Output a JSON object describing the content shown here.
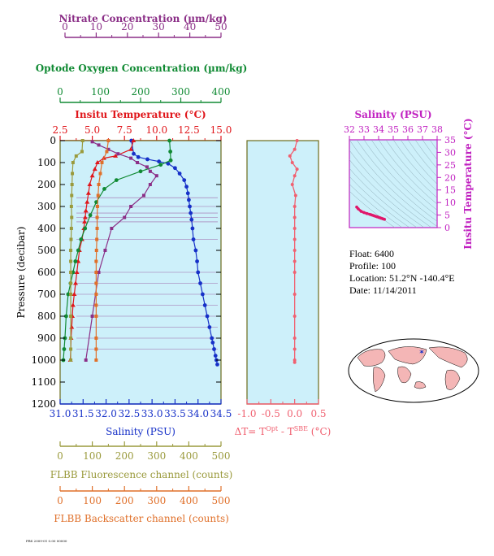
{
  "axes": {
    "nitrate": {
      "label": "Nitrate Concentration (µm/kg)",
      "ticks": [
        "0",
        "10",
        "20",
        "30",
        "40",
        "50"
      ],
      "color": "#8b2f87"
    },
    "oxygen": {
      "label": "Optode Oxygen Concentration (µm/kg)",
      "ticks": [
        "0",
        "100",
        "200",
        "300",
        "400"
      ],
      "color": "#108a33"
    },
    "temperature": {
      "label": "Insitu Temperature (°C)",
      "ticks": [
        "2.5",
        "5.0",
        "7.5",
        "10.0",
        "12.5",
        "15.0"
      ],
      "color": "#e0161b"
    },
    "pressure": {
      "label": "Pressure (decibar)",
      "ticks": [
        "0",
        "100",
        "200",
        "300",
        "400",
        "500",
        "600",
        "700",
        "800",
        "900",
        "1000",
        "1100",
        "1200"
      ],
      "color": "#000000"
    },
    "salinity": {
      "label": "Salinity (PSU)",
      "ticks": [
        "31.0",
        "31.5",
        "32.0",
        "32.5",
        "33.0",
        "33.5",
        "34.0",
        "34.5"
      ],
      "color": "#1630c8"
    },
    "fluorescence": {
      "label": "FLBB Fluorescence channel (counts)",
      "ticks": [
        "0",
        "100",
        "200",
        "300",
        "400",
        "500"
      ],
      "color": "#9a9a3c"
    },
    "backscatter": {
      "label": "FLBB Backscatter channel (counts)",
      "ticks": [
        "0",
        "100",
        "200",
        "300",
        "400",
        "500"
      ],
      "color": "#e0702a"
    },
    "delta_t": {
      "label_prefix": "ΔT= T",
      "sup1": "Opt",
      "mid": " - T",
      "sup2": "SBE",
      "suffix": " (°C)",
      "ticks": [
        "-1.0",
        "-0.5",
        "0.0",
        "0.5"
      ],
      "color": "#f06070"
    },
    "ts_salinity": {
      "label": "Salinity (PSU)",
      "ticks": [
        "32",
        "33",
        "34",
        "35",
        "36",
        "37",
        "38"
      ],
      "color": "#c020c0"
    },
    "ts_temperature": {
      "label": "Insitu Temperature (°C)",
      "ticks": [
        "0",
        "5",
        "10",
        "15",
        "20",
        "25",
        "30",
        "35"
      ],
      "color": "#c020c0"
    }
  },
  "info": {
    "float": "Float:  6400",
    "profile": "Profile:  100",
    "location": "Location:  51.2°N  -140.4°E",
    "date": "Date:  11/14/2011"
  },
  "footer_text": "PBS 2009-01 0.00 00000",
  "colors": {
    "panel_bg": "#cdf0fa",
    "frame": "#6b6b1a"
  },
  "chart_data": [
    {
      "type": "line",
      "title": "",
      "ylabel": "Pressure (decibar)",
      "ylim": [
        1200,
        0
      ],
      "series": [
        {
          "name": "Salinity (PSU)",
          "axis": "salinity",
          "xlim": [
            31.0,
            34.5
          ],
          "x": [
            32.55,
            32.6,
            32.7,
            32.9,
            33.15,
            33.35,
            33.5,
            33.6,
            33.7,
            33.75,
            33.78,
            33.8,
            33.82,
            33.84,
            33.86,
            33.88,
            33.9,
            33.95,
            33.98,
            34.0,
            34.05,
            34.1,
            34.15,
            34.2,
            34.25,
            34.3,
            34.32,
            34.35,
            34.38,
            34.4,
            34.42
          ],
          "y": [
            0,
            60,
            75,
            85,
            95,
            105,
            125,
            150,
            180,
            210,
            240,
            270,
            300,
            330,
            360,
            400,
            450,
            500,
            550,
            600,
            650,
            700,
            750,
            800,
            850,
            900,
            920,
            950,
            980,
            1000,
            1020
          ]
        },
        {
          "name": "Insitu Temperature (°C)",
          "axis": "temperature",
          "xlim": [
            2.5,
            15.0
          ],
          "x": [
            8.2,
            8.0,
            6.8,
            5.9,
            5.4,
            5.2,
            5.0,
            4.8,
            4.7,
            4.6,
            4.5,
            4.45,
            4.4,
            4.35,
            4.2,
            4.0,
            3.9,
            3.8,
            3.7,
            3.6,
            3.5,
            3.45,
            3.4,
            3.35,
            3.3
          ],
          "y": [
            0,
            40,
            70,
            80,
            100,
            130,
            160,
            200,
            240,
            280,
            320,
            350,
            370,
            400,
            450,
            500,
            550,
            600,
            650,
            700,
            750,
            800,
            850,
            900,
            1000
          ]
        },
        {
          "name": "Optode Oxygen Concentration (µm/kg)",
          "axis": "oxygen",
          "xlim": [
            0,
            400
          ],
          "x": [
            272,
            274,
            275,
            250,
            200,
            140,
            110,
            90,
            75,
            62,
            52,
            45,
            38,
            32,
            26,
            20,
            15,
            12,
            10,
            8
          ],
          "y": [
            0,
            50,
            90,
            110,
            140,
            180,
            220,
            280,
            340,
            400,
            450,
            500,
            550,
            600,
            650,
            700,
            800,
            900,
            950,
            1000
          ]
        },
        {
          "name": "Nitrate Concentration (µm/kg)",
          "axis": "nitrate",
          "xlim": [
            0,
            50
          ],
          "x": [
            10,
            12,
            15,
            18,
            22,
            24,
            27,
            28,
            30,
            28,
            26,
            22,
            20,
            16,
            14,
            12,
            10,
            8
          ],
          "y": [
            5,
            20,
            40,
            60,
            80,
            100,
            120,
            140,
            160,
            200,
            250,
            300,
            350,
            400,
            500,
            600,
            800,
            1000
          ]
        },
        {
          "name": "FLBB Fluorescence channel (counts)",
          "axis": "fluorescence",
          "xlim": [
            0,
            500
          ],
          "x": [
            70,
            68,
            50,
            40,
            38,
            37,
            36,
            35,
            36,
            35,
            34,
            33,
            33,
            33,
            33,
            33,
            33,
            33,
            33,
            33
          ],
          "y": [
            0,
            50,
            70,
            100,
            150,
            200,
            250,
            300,
            350,
            400,
            450,
            500,
            550,
            600,
            650,
            700,
            800,
            900,
            950,
            1000
          ]
        },
        {
          "name": "FLBB Backscatter channel (counts)",
          "axis": "backscatter",
          "xlim": [
            0,
            500
          ],
          "x": [
            150,
            145,
            130,
            125,
            120,
            118,
            116,
            115,
            115,
            114,
            113,
            112,
            112,
            112,
            112,
            112,
            112,
            112,
            112,
            112
          ],
          "y": [
            0,
            50,
            100,
            150,
            200,
            250,
            300,
            350,
            400,
            450,
            500,
            550,
            600,
            650,
            700,
            750,
            800,
            900,
            950,
            1000
          ]
        }
      ]
    },
    {
      "type": "line",
      "xlabel": "ΔT= TOpt - TSBE (°C)",
      "xlim": [
        -1.0,
        0.5
      ],
      "ylim": [
        1200,
        0
      ],
      "series": [
        {
          "x": [
            0.05,
            0.0,
            -0.1,
            -0.05,
            0.05,
            0.0,
            -0.05,
            0.02,
            0.0,
            0.0,
            0.0,
            0.0,
            0.0,
            0.0,
            0.0,
            0.0,
            0.0,
            0.0,
            0.0,
            0.0,
            0.0
          ],
          "y": [
            0,
            40,
            70,
            100,
            130,
            160,
            200,
            250,
            300,
            350,
            400,
            450,
            500,
            550,
            600,
            700,
            800,
            900,
            950,
            1000,
            1010
          ]
        }
      ]
    },
    {
      "type": "scatter",
      "xlabel": "Salinity (PSU)",
      "ylabel": "Insitu Temperature (°C)",
      "xlim": [
        32,
        38
      ],
      "ylim": [
        0,
        35
      ],
      "series": [
        {
          "x": [
            32.5,
            32.6,
            32.8,
            33.0,
            33.2,
            33.4,
            33.5,
            33.6,
            33.7,
            33.8,
            33.9,
            34.0,
            34.1,
            34.2,
            34.3,
            34.4
          ],
          "y": [
            8.2,
            7.5,
            6.5,
            6.0,
            5.6,
            5.3,
            5.1,
            4.9,
            4.7,
            4.5,
            4.3,
            4.1,
            3.9,
            3.7,
            3.5,
            3.3
          ]
        }
      ]
    }
  ]
}
